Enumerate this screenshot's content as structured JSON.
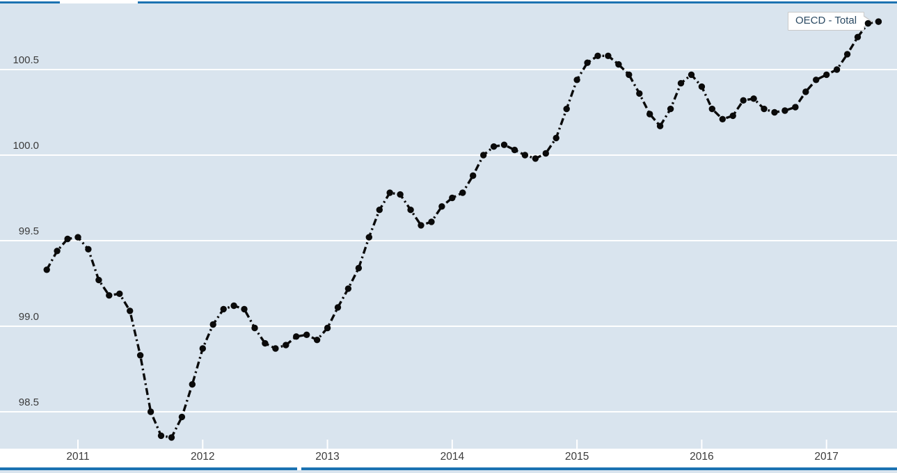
{
  "tooltip": {
    "label": "OECD - Total"
  },
  "colors": {
    "plot_background": "#d9e4ee",
    "gridline": "#ffffff",
    "accent_line": "#1b72b2",
    "series_line": "#0a0a0a",
    "axis_text": "#3b3b3b",
    "tooltip_text": "#2b4a63",
    "tooltip_border": "#c9c9c9"
  },
  "chart_data": {
    "type": "line",
    "title": "",
    "xlabel": "",
    "ylabel": "",
    "series_name": "OECD - Total",
    "line_style": "dash-dot",
    "marker": "circle",
    "grid": true,
    "legend_position": "tooltip-top-right",
    "ylim": [
      98.28,
      100.89
    ],
    "y_ticks": [
      98.5,
      99.0,
      99.5,
      100.0,
      100.5
    ],
    "x_ticks": [
      "2011",
      "2012",
      "2013",
      "2014",
      "2015",
      "2016",
      "2017"
    ],
    "x_start": "2010-10",
    "x_freq": "monthly",
    "x": [
      "2010-10",
      "2010-11",
      "2010-12",
      "2011-01",
      "2011-02",
      "2011-03",
      "2011-04",
      "2011-05",
      "2011-06",
      "2011-07",
      "2011-08",
      "2011-09",
      "2011-10",
      "2011-11",
      "2011-12",
      "2012-01",
      "2012-02",
      "2012-03",
      "2012-04",
      "2012-05",
      "2012-06",
      "2012-07",
      "2012-08",
      "2012-09",
      "2012-10",
      "2012-11",
      "2012-12",
      "2013-01",
      "2013-02",
      "2013-03",
      "2013-04",
      "2013-05",
      "2013-06",
      "2013-07",
      "2013-08",
      "2013-09",
      "2013-10",
      "2013-11",
      "2013-12",
      "2014-01",
      "2014-02",
      "2014-03",
      "2014-04",
      "2014-05",
      "2014-06",
      "2014-07",
      "2014-08",
      "2014-09",
      "2014-10",
      "2014-11",
      "2014-12",
      "2015-01",
      "2015-02",
      "2015-03",
      "2015-04",
      "2015-05",
      "2015-06",
      "2015-07",
      "2015-08",
      "2015-09",
      "2015-10",
      "2015-11",
      "2015-12",
      "2016-01",
      "2016-02",
      "2016-03",
      "2016-04",
      "2016-05",
      "2016-06",
      "2016-07",
      "2016-08",
      "2016-09",
      "2016-10",
      "2016-11",
      "2016-12",
      "2017-01",
      "2017-02",
      "2017-03",
      "2017-04",
      "2017-05",
      "2017-06"
    ],
    "values": [
      99.33,
      99.44,
      99.51,
      99.52,
      99.45,
      99.27,
      99.18,
      99.19,
      99.09,
      98.83,
      98.5,
      98.36,
      98.35,
      98.47,
      98.66,
      98.87,
      99.01,
      99.1,
      99.12,
      99.1,
      98.99,
      98.9,
      98.87,
      98.89,
      98.94,
      98.95,
      98.92,
      98.99,
      99.11,
      99.22,
      99.34,
      99.52,
      99.68,
      99.78,
      99.77,
      99.68,
      99.59,
      99.61,
      99.7,
      99.75,
      99.78,
      99.88,
      100.0,
      100.05,
      100.06,
      100.03,
      100.0,
      99.98,
      100.01,
      100.1,
      100.27,
      100.44,
      100.54,
      100.58,
      100.58,
      100.53,
      100.47,
      100.36,
      100.24,
      100.17,
      100.27,
      100.42,
      100.47,
      100.4,
      100.27,
      100.21,
      100.23,
      100.32,
      100.33,
      100.27,
      100.25,
      100.26,
      100.28,
      100.37,
      100.44,
      100.47,
      100.5,
      100.59,
      100.69,
      100.77,
      100.78
    ]
  }
}
